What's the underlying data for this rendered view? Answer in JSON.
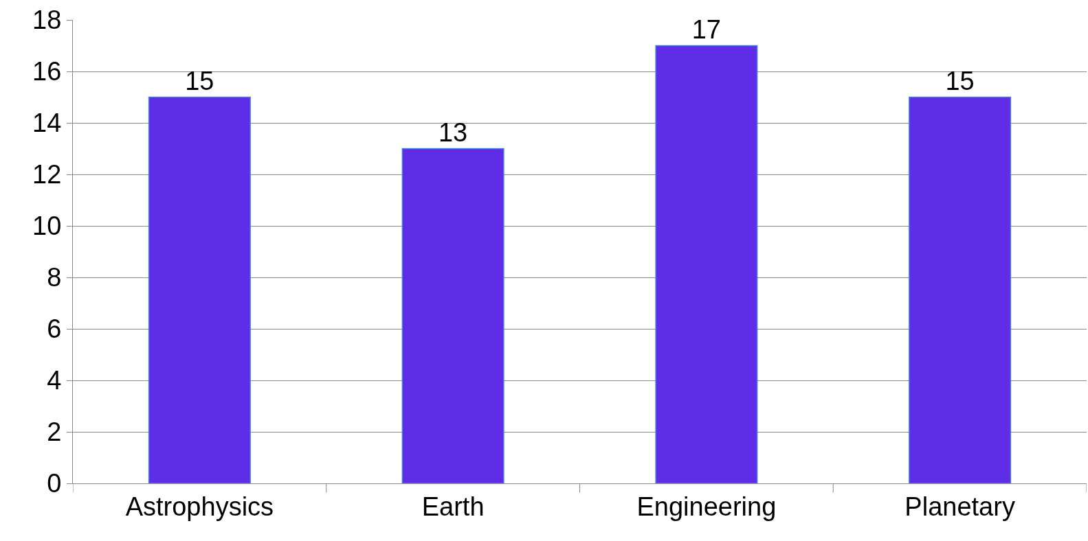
{
  "chart_data": {
    "type": "bar",
    "categories": [
      "Astrophysics",
      "Earth",
      "Engineering",
      "Planetary"
    ],
    "values": [
      15,
      13,
      17,
      15
    ],
    "color": "#5f2de8",
    "ylim": [
      0,
      18
    ],
    "yticks": [
      0,
      2,
      4,
      6,
      8,
      10,
      12,
      14,
      16,
      18
    ],
    "grid": "y",
    "data_labels": true,
    "legend": false
  }
}
